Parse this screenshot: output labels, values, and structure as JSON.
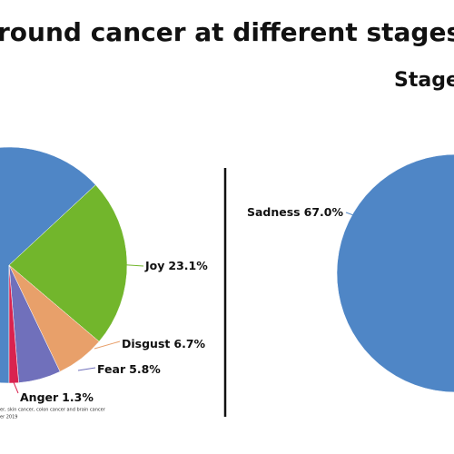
{
  "title": "round cancer at different stages",
  "footnote": [
    "er, skin cancer, colon cancer and brain cancer",
    "er 2019"
  ],
  "chart_data": [
    {
      "type": "pie",
      "start_angle": 180,
      "categories": [
        null,
        "Joy",
        "Disgust",
        "Fear",
        "Anger"
      ],
      "values": [
        63.1,
        23.1,
        6.7,
        5.8,
        1.3
      ],
      "value_labels": [
        null,
        "23.1%",
        "6.7%",
        "5.8%",
        "1.3%"
      ],
      "colors": [
        "#4f86c6",
        "#72b62c",
        "#e8a06a",
        "#7070bb",
        "#d9234f"
      ]
    },
    {
      "type": "pie",
      "title": "Stage",
      "start_angle": 180,
      "categories": [
        "Sadness"
      ],
      "values": [
        67.0
      ],
      "value_labels": [
        "67.0%"
      ],
      "colors": [
        "#4f86c6"
      ]
    }
  ]
}
